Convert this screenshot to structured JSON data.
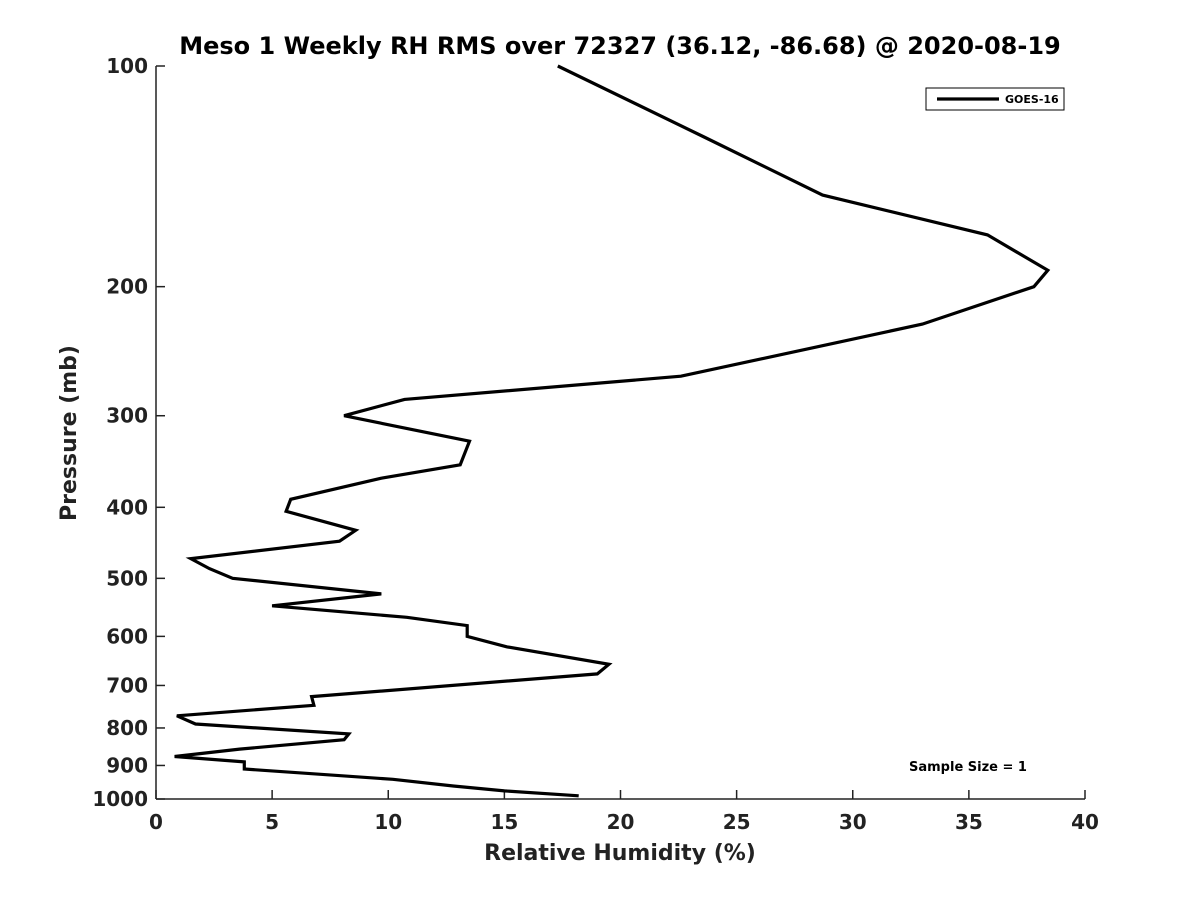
{
  "chart_data": {
    "type": "line",
    "title": "Meso 1 Weekly RH RMS over 72327 (36.12, -86.68) @ 2020-08-19",
    "xlabel": "Relative Humidity (%)",
    "ylabel": "Pressure (mb)",
    "xlim": [
      0,
      40
    ],
    "ylim": [
      1000,
      100
    ],
    "yscale": "log",
    "y_reversed": true,
    "xticks": [
      0,
      5,
      10,
      15,
      20,
      25,
      30,
      35,
      40
    ],
    "yticks": [
      100,
      200,
      300,
      400,
      500,
      600,
      700,
      800,
      900,
      1000
    ],
    "legend_position": "top-right",
    "series": [
      {
        "name": "GOES-16",
        "color": "#000000",
        "x": [
          17.3,
          23.6,
          28.7,
          35.8,
          38.4,
          37.8,
          33.0,
          22.6,
          10.7,
          8.1,
          13.5,
          13.1,
          9.7,
          5.8,
          5.6,
          8.6,
          7.9,
          1.5,
          2.3,
          3.3,
          9.7,
          5.0,
          10.8,
          13.4,
          13.4,
          15.1,
          19.5,
          19.0,
          6.7,
          6.8,
          0.9,
          1.7,
          8.3,
          8.1,
          3.6,
          0.8,
          3.8,
          3.8,
          10.2,
          12.8,
          15.0,
          18.2
        ],
        "y": [
          100,
          125,
          150,
          170,
          190,
          200,
          225,
          265,
          285,
          300,
          325,
          350,
          365,
          390,
          405,
          430,
          445,
          470,
          485,
          500,
          525,
          545,
          565,
          580,
          600,
          620,
          655,
          675,
          725,
          745,
          770,
          790,
          815,
          830,
          855,
          875,
          890,
          910,
          940,
          960,
          975,
          990
        ]
      }
    ],
    "annotations": [
      "Sample Size = 1"
    ]
  }
}
